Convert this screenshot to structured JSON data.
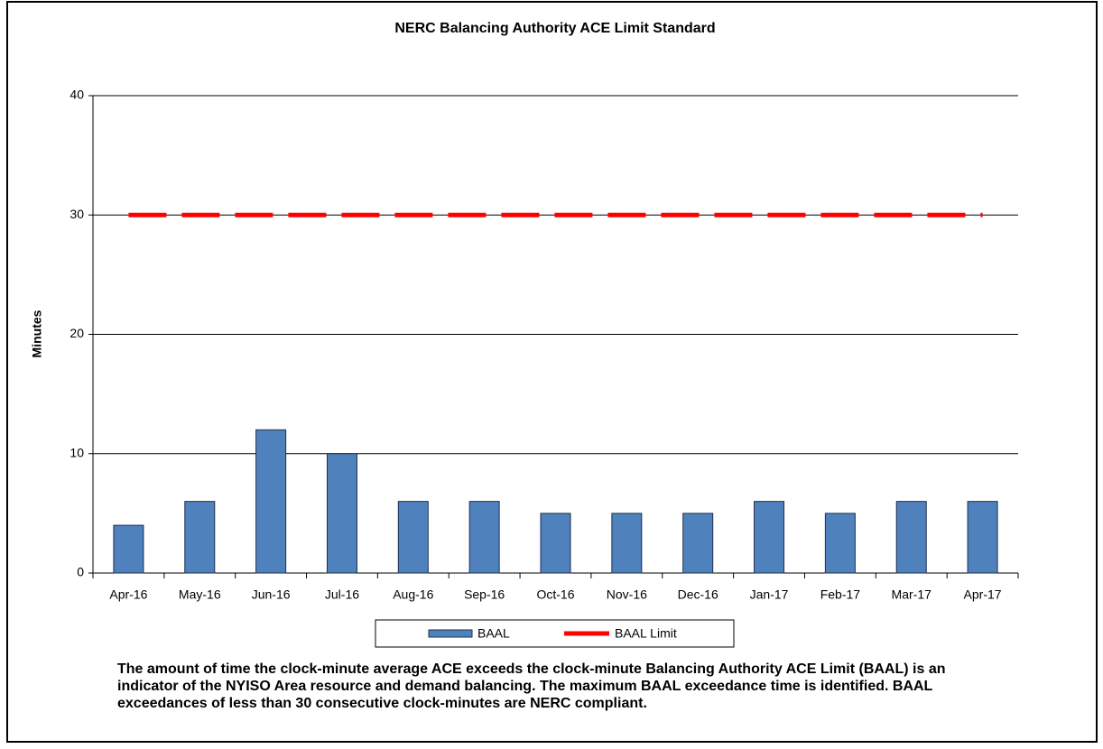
{
  "chart_data": {
    "type": "bar",
    "title": "NERC Balancing Authority ACE Limit Standard",
    "y_label": "Minutes",
    "categories": [
      "Apr-16",
      "May-16",
      "Jun-16",
      "Jul-16",
      "Aug-16",
      "Sep-16",
      "Oct-16",
      "Nov-16",
      "Dec-16",
      "Jan-17",
      "Feb-17",
      "Mar-17",
      "Apr-17"
    ],
    "series": [
      {
        "name": "BAAL",
        "type": "bar",
        "color": "#4f81bd",
        "values": [
          4,
          6,
          12,
          10,
          6,
          6,
          5,
          5,
          5,
          6,
          5,
          6,
          6
        ]
      },
      {
        "name": "BAAL Limit",
        "type": "line",
        "color": "#ff0000",
        "values": [
          30,
          30,
          30,
          30,
          30,
          30,
          30,
          30,
          30,
          30,
          30,
          30,
          30
        ]
      }
    ],
    "ylim": [
      0,
      40
    ],
    "yticks": [
      0,
      10,
      20,
      30,
      40
    ],
    "grid": true,
    "legend": "bottom",
    "caption": "The  amount of time the clock-minute average ACE exceeds the clock-minute Balancing Authority ACE Limit (BAAL) is an indicator of the NYISO Area resource and demand balancing. The maximum BAAL exceedance time is identified. BAAL exceedances of less than 30 consecutive clock-minutes are NERC compliant."
  }
}
